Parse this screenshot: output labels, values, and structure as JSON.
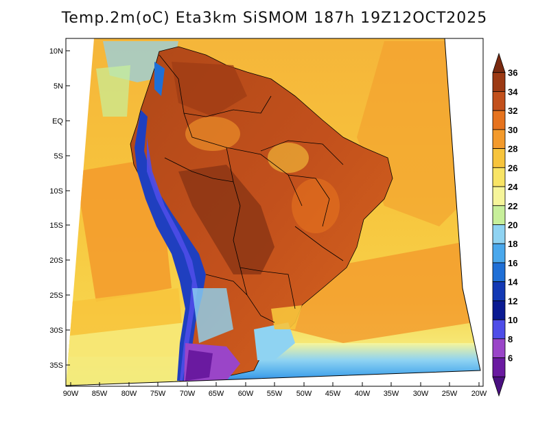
{
  "title": "Temp.2m(oC) Eta3km SiSMOM 187h 19Z12OCT2025",
  "lat_labels": [
    "10N",
    "5N",
    "EQ",
    "5S",
    "10S",
    "15S",
    "20S",
    "25S",
    "30S",
    "35S"
  ],
  "lon_labels": [
    "90W",
    "85W",
    "80W",
    "75W",
    "70W",
    "65W",
    "60W",
    "55W",
    "50W",
    "45W",
    "40W",
    "35W",
    "30W",
    "25W",
    "20W"
  ],
  "colorbar": {
    "labels": [
      "36",
      "34",
      "32",
      "30",
      "28",
      "26",
      "24",
      "22",
      "20",
      "18",
      "16",
      "14",
      "12",
      "10",
      "8",
      "6"
    ],
    "colors": [
      "#7a2a10",
      "#9c3a14",
      "#c2501c",
      "#e6731e",
      "#f39a2c",
      "#f7c43c",
      "#f8e465",
      "#f6f59a",
      "#c7ef9a",
      "#8fd3f2",
      "#4aa8ec",
      "#1f6fd6",
      "#1238b4",
      "#0a1a92",
      "#4e4de8",
      "#9a45c8",
      "#6a1aa0",
      "#4a1080"
    ]
  },
  "palette": {
    "ocean_north": "#f7d24a",
    "ocean_south": "#f6ea7a",
    "pacific_warm": "#f39a2c",
    "land_hot": "#c2501c",
    "land_very_hot": "#8a3414",
    "amazon": "#d8661e",
    "andes_cold": "#1f3fbf",
    "andes_colder": "#4e4de8",
    "patagonia": "#9a45c8",
    "south_atlantic": "#f7c43c",
    "cold_south": "#4aa8ec",
    "light_blue": "#8fd3f2"
  }
}
